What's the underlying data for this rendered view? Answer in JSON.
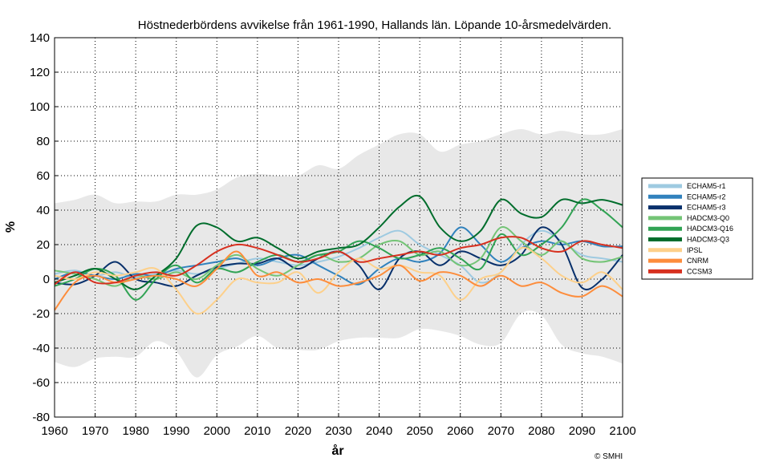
{
  "chart_data": {
    "type": "line",
    "title": "Höstnederbördens avvikelse från 1961-1990, Hallands län. Löpande 10-årsmedelvärden.",
    "xlabel": "år",
    "ylabel": "%",
    "xlim": [
      1960,
      2100
    ],
    "ylim": [
      -80,
      140
    ],
    "xticks": [
      1960,
      1970,
      1980,
      1990,
      2000,
      2010,
      2020,
      2030,
      2040,
      2050,
      2060,
      2070,
      2080,
      2090,
      2100
    ],
    "yticks": [
      -80,
      -60,
      -40,
      -20,
      0,
      20,
      40,
      60,
      80,
      100,
      120,
      140
    ],
    "grid": true,
    "legend_position": "right-outside",
    "credit": "© SMHI",
    "x": [
      1960,
      1965,
      1970,
      1975,
      1980,
      1985,
      1990,
      1995,
      2000,
      2005,
      2010,
      2015,
      2020,
      2025,
      2030,
      2035,
      2040,
      2045,
      2050,
      2055,
      2060,
      2065,
      2070,
      2075,
      2080,
      2085,
      2090,
      2095,
      2100
    ],
    "range_band": {
      "upper": [
        44,
        46,
        49,
        44,
        45,
        45,
        49,
        49,
        52,
        59,
        61,
        60,
        60,
        66,
        64,
        72,
        78,
        84,
        84,
        74,
        78,
        80,
        84,
        87,
        84,
        86,
        84,
        84,
        87
      ],
      "lower": [
        -48,
        -51,
        -46,
        -45,
        -45,
        -36,
        -42,
        -57,
        -44,
        -39,
        -33,
        -40,
        -41,
        -41,
        -36,
        -34,
        -34,
        -34,
        -29,
        -30,
        -33,
        -38,
        -37,
        -20,
        -21,
        -38,
        -43,
        -45,
        -49
      ]
    },
    "series": [
      {
        "name": "ECHAM5-r1",
        "color": "#9ecae1",
        "values": [
          3,
          5,
          2,
          4,
          1,
          3,
          5,
          3,
          6,
          9,
          12,
          10,
          8,
          10,
          13,
          18,
          24,
          28,
          20,
          14,
          8,
          -2,
          4,
          20,
          28,
          22,
          14,
          12,
          10
        ]
      },
      {
        "name": "ECHAM5-r2",
        "color": "#3182bd",
        "values": [
          0,
          4,
          2,
          0,
          3,
          2,
          6,
          8,
          10,
          12,
          8,
          12,
          14,
          8,
          2,
          -3,
          6,
          12,
          10,
          15,
          30,
          20,
          10,
          18,
          22,
          20,
          22,
          19,
          19
        ]
      },
      {
        "name": "ECHAM5-r3",
        "color": "#08306b",
        "values": [
          -2,
          -3,
          2,
          10,
          0,
          -2,
          -4,
          2,
          7,
          9,
          9,
          12,
          6,
          12,
          16,
          8,
          -6,
          12,
          16,
          8,
          16,
          12,
          8,
          14,
          30,
          20,
          -5,
          0,
          14
        ]
      },
      {
        "name": "HADCM3-Q0",
        "color": "#74c476",
        "values": [
          5,
          3,
          0,
          -4,
          2,
          0,
          4,
          0,
          8,
          14,
          6,
          2,
          8,
          14,
          10,
          12,
          20,
          22,
          14,
          16,
          8,
          12,
          30,
          22,
          14,
          22,
          12,
          10,
          13
        ]
      },
      {
        "name": "HADCM3-Q16",
        "color": "#31a354",
        "values": [
          -4,
          0,
          6,
          2,
          -12,
          0,
          8,
          -2,
          6,
          4,
          10,
          14,
          10,
          14,
          16,
          22,
          18,
          12,
          14,
          18,
          12,
          6,
          26,
          14,
          20,
          30,
          46,
          40,
          30
        ]
      },
      {
        "name": "HADCM3-Q3",
        "color": "#006d2c",
        "values": [
          -2,
          2,
          6,
          0,
          -6,
          2,
          12,
          31,
          30,
          22,
          24,
          18,
          12,
          16,
          18,
          20,
          30,
          42,
          48,
          30,
          22,
          28,
          46,
          38,
          36,
          46,
          44,
          46,
          43
        ]
      },
      {
        "name": "IPSL",
        "color": "#fdd08a",
        "values": [
          2,
          0,
          4,
          2,
          4,
          6,
          -6,
          -20,
          -12,
          0,
          -2,
          -2,
          4,
          -8,
          4,
          12,
          6,
          8,
          4,
          2,
          -12,
          0,
          4,
          18,
          12,
          2,
          -2,
          4,
          -6
        ]
      },
      {
        "name": "CNRM",
        "color": "#fd8d3c",
        "values": [
          -18,
          -2,
          2,
          -2,
          0,
          2,
          0,
          -4,
          6,
          16,
          2,
          4,
          -2,
          0,
          -4,
          -2,
          2,
          8,
          -1,
          4,
          2,
          -4,
          2,
          -4,
          -2,
          -8,
          -10,
          -4,
          -10
        ]
      },
      {
        "name": "CCSM3",
        "color": "#d7301f",
        "values": [
          -3,
          4,
          -2,
          -2,
          2,
          4,
          2,
          8,
          16,
          20,
          18,
          14,
          10,
          12,
          16,
          10,
          12,
          14,
          16,
          14,
          18,
          20,
          24,
          24,
          18,
          16,
          22,
          20,
          18
        ]
      }
    ]
  }
}
